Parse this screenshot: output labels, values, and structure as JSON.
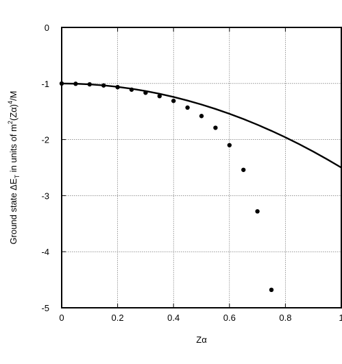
{
  "chart_data": {
    "type": "scatter",
    "xlabel": "Zα",
    "ylabel_parts": {
      "prefix": "Ground state ΔE",
      "sub": "T",
      "middle": " in units of m",
      "sup1": "2",
      "middle2": "(Zα)",
      "sup2": "4",
      "suffix": "/M"
    },
    "xlim": [
      0,
      1
    ],
    "ylim": [
      -5,
      0
    ],
    "x_ticks": [
      0,
      0.2,
      0.4,
      0.6,
      0.8,
      1
    ],
    "x_tick_labels": [
      "0",
      "0.2",
      "0.4",
      "0.6",
      "0.8",
      "1"
    ],
    "y_ticks": [
      0,
      -1,
      -2,
      -3,
      -4,
      -5
    ],
    "y_tick_labels": [
      "0",
      "-1",
      "-2",
      "-3",
      "-4",
      "-5"
    ],
    "grid": true,
    "series": [
      {
        "type": "line",
        "x": [
          0,
          0.05,
          0.1,
          0.15,
          0.2,
          0.25,
          0.3,
          0.35,
          0.4,
          0.45,
          0.5,
          0.55,
          0.6,
          0.65,
          0.7,
          0.75,
          0.8,
          0.85,
          0.9,
          0.95,
          1.0
        ],
        "y": [
          -1.0,
          -1.004,
          -1.015,
          -1.034,
          -1.06,
          -1.094,
          -1.135,
          -1.184,
          -1.24,
          -1.304,
          -1.375,
          -1.454,
          -1.54,
          -1.634,
          -1.735,
          -1.844,
          -1.96,
          -2.084,
          -2.215,
          -2.354,
          -2.5
        ],
        "color": "#000000"
      },
      {
        "type": "scatter",
        "x": [
          0,
          0.05,
          0.1,
          0.15,
          0.2,
          0.25,
          0.3,
          0.35,
          0.4,
          0.45,
          0.5,
          0.55,
          0.6,
          0.65,
          0.7,
          0.75
        ],
        "y": [
          -1.0,
          -1.005,
          -1.015,
          -1.035,
          -1.065,
          -1.11,
          -1.165,
          -1.225,
          -1.31,
          -1.43,
          -1.58,
          -1.79,
          -2.1,
          -2.54,
          -3.28,
          -4.68
        ],
        "color": "#000000"
      }
    ]
  }
}
